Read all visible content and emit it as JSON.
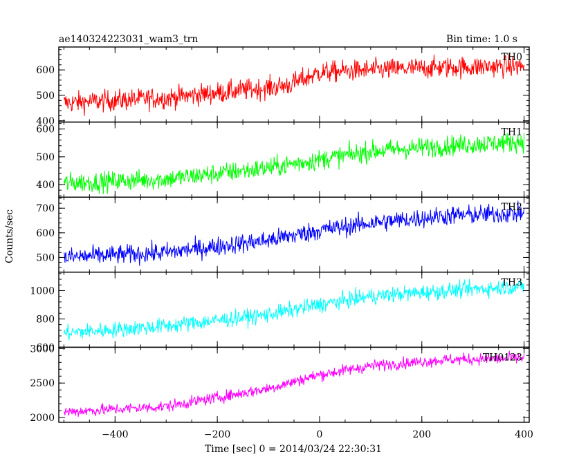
{
  "header": {
    "left": "ae140324223031_wam3_trn",
    "right": "Bin time: 1.0 s"
  },
  "xlabel": "Time [sec] 0 = 2014/03/24 22:30:31",
  "ylabel": "Counts/sec",
  "chart_data": {
    "type": "line",
    "xlim": [
      -510,
      410
    ],
    "x_ticks": [
      -400,
      -200,
      0,
      200,
      400
    ],
    "x_ticklabels": [
      "−400",
      "−200",
      "0",
      "200",
      "400"
    ],
    "x_range": [
      -500,
      400
    ],
    "bin": 1.0,
    "panels": [
      {
        "name": "TH0",
        "color": "#ff0000",
        "ylim": [
          395,
          690
        ],
        "y_ticks": [
          400,
          500,
          600
        ],
        "y_ticklabels": [
          "400",
          "500",
          "600"
        ],
        "trend": [
          [
            -500,
            470
          ],
          [
            -300,
            490
          ],
          [
            -100,
            530
          ],
          [
            -60,
            540
          ],
          [
            0,
            590
          ],
          [
            100,
            600
          ],
          [
            250,
            610
          ],
          [
            400,
            615
          ]
        ],
        "noise": 30
      },
      {
        "name": "TH1",
        "color": "#00ff00",
        "ylim": [
          355,
          625
        ],
        "y_ticks": [
          400,
          500,
          600
        ],
        "y_ticklabels": [
          "400",
          "500",
          "600"
        ],
        "trend": [
          [
            -500,
            405
          ],
          [
            -300,
            420
          ],
          [
            -100,
            460
          ],
          [
            0,
            490
          ],
          [
            100,
            520
          ],
          [
            250,
            540
          ],
          [
            400,
            555
          ]
        ],
        "noise": 26
      },
      {
        "name": "TH2",
        "color": "#0000ff",
        "ylim": [
          440,
          745
        ],
        "y_ticks": [
          500,
          600,
          700
        ],
        "y_ticklabels": [
          "500",
          "600",
          "700"
        ],
        "trend": [
          [
            -500,
            500
          ],
          [
            -300,
            520
          ],
          [
            -100,
            570
          ],
          [
            0,
            610
          ],
          [
            100,
            640
          ],
          [
            250,
            670
          ],
          [
            400,
            680
          ]
        ],
        "noise": 28
      },
      {
        "name": "TH3",
        "color": "#00ffff",
        "ylim": [
          600,
          1130
        ],
        "y_ticks": [
          600,
          800,
          1000
        ],
        "y_ticklabels": [
          "600",
          "800",
          "1000"
        ],
        "trend": [
          [
            -500,
            700
          ],
          [
            -300,
            750
          ],
          [
            -100,
            830
          ],
          [
            0,
            900
          ],
          [
            100,
            960
          ],
          [
            250,
            1000
          ],
          [
            400,
            1030
          ]
        ],
        "noise": 40
      },
      {
        "name": "TH0123",
        "color": "#ff00ff",
        "ylim": [
          1930,
          3020
        ],
        "y_ticks": [
          2000,
          2500,
          3000
        ],
        "y_ticklabels": [
          "2000",
          "2500",
          "3000"
        ],
        "trend": [
          [
            -500,
            2080
          ],
          [
            -300,
            2160
          ],
          [
            -100,
            2420
          ],
          [
            0,
            2620
          ],
          [
            100,
            2750
          ],
          [
            250,
            2840
          ],
          [
            400,
            2860
          ]
        ],
        "noise": 60
      }
    ]
  }
}
